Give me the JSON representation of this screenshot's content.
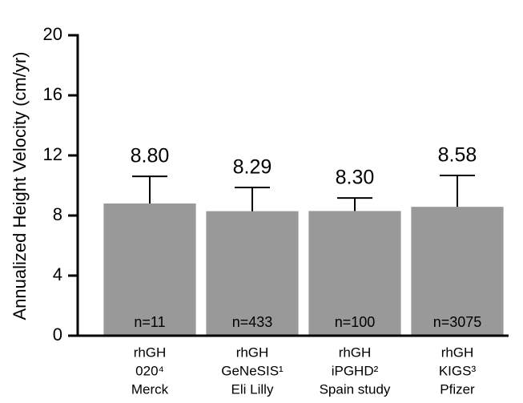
{
  "chart_data": {
    "type": "bar",
    "y_label": "Annualized Height Velocity (cm/yr)",
    "categories": [
      [
        "rhGH",
        "020⁴",
        "Merck"
      ],
      [
        "rhGH",
        "GeNeSIS¹",
        "Eli Lilly"
      ],
      [
        "rhGH",
        "iPGHD²",
        "Spain study"
      ],
      [
        "rhGH",
        "KIGS³",
        "Pfizer"
      ]
    ],
    "values": [
      8.8,
      8.29,
      8.3,
      8.58
    ],
    "value_labels": [
      "8.80",
      "8.29",
      "8.30",
      "8.58"
    ],
    "errors": [
      1.81,
      1.58,
      0.87,
      2.09
    ],
    "sample_labels": [
      "n=11",
      "n=433",
      "n=100",
      "n=3075"
    ],
    "color": "#999999",
    "ylim": [
      0,
      20
    ],
    "yticks": [
      0,
      4,
      8,
      12,
      16,
      20
    ],
    "grid": false
  }
}
